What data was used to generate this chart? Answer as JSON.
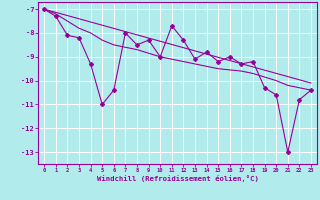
{
  "xlabel": "Windchill (Refroidissement éolien,°C)",
  "bg_color": "#b2ebeb",
  "grid_color": "#ffffff",
  "line_color": "#990099",
  "ylim": [
    -13.5,
    -6.7
  ],
  "xlim": [
    -0.5,
    23.5
  ],
  "yticks": [
    -13,
    -12,
    -11,
    -10,
    -9,
    -8,
    -7
  ],
  "xticks": [
    0,
    1,
    2,
    3,
    4,
    5,
    6,
    7,
    8,
    9,
    10,
    11,
    12,
    13,
    14,
    15,
    16,
    17,
    18,
    19,
    20,
    21,
    22,
    23
  ],
  "line1_x": [
    0,
    1,
    2,
    3,
    4,
    5,
    6,
    7,
    8,
    9,
    10,
    11,
    12,
    13,
    14,
    15,
    16,
    17,
    18,
    19,
    20,
    21,
    22,
    23
  ],
  "line1_y": [
    -7.0,
    -7.3,
    -8.1,
    -8.2,
    -9.3,
    -11.0,
    -10.4,
    -8.0,
    -8.5,
    -8.3,
    -9.0,
    -7.7,
    -8.3,
    -9.1,
    -8.8,
    -9.2,
    -9.0,
    -9.3,
    -9.2,
    -10.3,
    -10.6,
    -13.0,
    -10.8,
    -10.4
  ],
  "line2_x": [
    0,
    1,
    2,
    3,
    4,
    5,
    6,
    7,
    8,
    9,
    10,
    11,
    12,
    13,
    14,
    15,
    16,
    17,
    18,
    19,
    20,
    21,
    22,
    23
  ],
  "line2_y": [
    -7.0,
    -7.2,
    -7.5,
    -7.8,
    -8.0,
    -8.3,
    -8.5,
    -8.6,
    -8.7,
    -8.85,
    -9.0,
    -9.1,
    -9.2,
    -9.3,
    -9.4,
    -9.5,
    -9.55,
    -9.6,
    -9.7,
    -9.85,
    -10.0,
    -10.2,
    -10.3,
    -10.4
  ],
  "line3_x": [
    0,
    23
  ],
  "line3_y": [
    -7.0,
    -10.1
  ]
}
